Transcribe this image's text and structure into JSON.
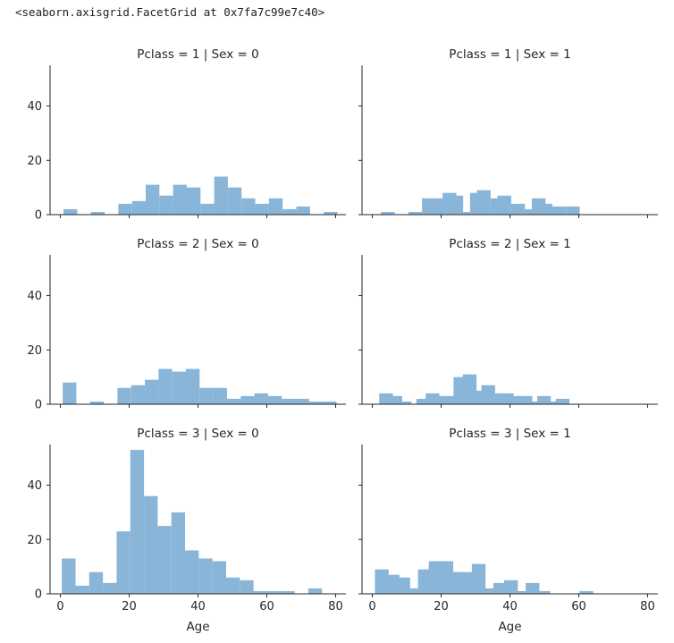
{
  "output": {
    "repr_text": "<seaborn.axisgrid.FacetGrid at 0x7fa7c99e7c40>"
  },
  "chart_data": {
    "type": "bar",
    "layout": "facet-grid 3 rows x 2 columns",
    "bar_color": "#89b5d9",
    "axis_color": "#262626",
    "xlabel": "Age",
    "ylabel": "",
    "xlim": [
      -3,
      83
    ],
    "ylim": [
      0,
      55
    ],
    "x_ticks": [
      0,
      20,
      40,
      60,
      80
    ],
    "y_ticks": [
      0,
      20,
      40
    ],
    "bin_width": 3.98,
    "panels": [
      {
        "title": "Pclass = 1 | Sex = 0",
        "bins": [
          {
            "x": 0.92,
            "count": 2
          },
          {
            "x": 4.9,
            "count": 0
          },
          {
            "x": 8.88,
            "count": 1
          },
          {
            "x": 12.86,
            "count": 0
          },
          {
            "x": 16.84,
            "count": 4
          },
          {
            "x": 20.82,
            "count": 5
          },
          {
            "x": 24.8,
            "count": 11
          },
          {
            "x": 28.78,
            "count": 7
          },
          {
            "x": 32.76,
            "count": 11
          },
          {
            "x": 36.74,
            "count": 10
          },
          {
            "x": 40.72,
            "count": 4
          },
          {
            "x": 44.7,
            "count": 14
          },
          {
            "x": 48.68,
            "count": 10
          },
          {
            "x": 52.66,
            "count": 6
          },
          {
            "x": 56.64,
            "count": 4
          },
          {
            "x": 60.62,
            "count": 6
          },
          {
            "x": 64.6,
            "count": 2
          },
          {
            "x": 68.58,
            "count": 3
          },
          {
            "x": 72.56,
            "count": 0
          },
          {
            "x": 76.54,
            "count": 1
          }
        ]
      },
      {
        "title": "Pclass = 1 | Sex = 1",
        "bins": [
          {
            "x": 0.92,
            "count": 0
          },
          {
            "x": 2.5,
            "count": 1
          },
          {
            "x": 6.48,
            "count": 0
          },
          {
            "x": 10.46,
            "count": 1
          },
          {
            "x": 14.44,
            "count": 6
          },
          {
            "x": 18.42,
            "count": 6
          },
          {
            "x": 20.42,
            "count": 8
          },
          {
            "x": 22.42,
            "count": 7
          },
          {
            "x": 26.4,
            "count": 1
          },
          {
            "x": 28.4,
            "count": 8
          },
          {
            "x": 30.4,
            "count": 9
          },
          {
            "x": 34.38,
            "count": 6
          },
          {
            "x": 36.38,
            "count": 7
          },
          {
            "x": 40.36,
            "count": 4
          },
          {
            "x": 42.36,
            "count": 2
          },
          {
            "x": 46.34,
            "count": 6
          },
          {
            "x": 48.34,
            "count": 4
          },
          {
            "x": 52.32,
            "count": 3
          },
          {
            "x": 56.3,
            "count": 3
          }
        ]
      },
      {
        "title": "Pclass = 2 | Sex = 0",
        "bins": [
          {
            "x": 0.67,
            "count": 8
          },
          {
            "x": 4.65,
            "count": 0
          },
          {
            "x": 8.63,
            "count": 1
          },
          {
            "x": 12.61,
            "count": 0
          },
          {
            "x": 16.59,
            "count": 6
          },
          {
            "x": 20.57,
            "count": 7
          },
          {
            "x": 24.55,
            "count": 9
          },
          {
            "x": 28.53,
            "count": 13
          },
          {
            "x": 32.51,
            "count": 12
          },
          {
            "x": 36.49,
            "count": 13
          },
          {
            "x": 40.47,
            "count": 6
          },
          {
            "x": 44.45,
            "count": 6
          },
          {
            "x": 48.43,
            "count": 2
          },
          {
            "x": 52.41,
            "count": 3
          },
          {
            "x": 56.39,
            "count": 4
          },
          {
            "x": 60.37,
            "count": 3
          },
          {
            "x": 64.35,
            "count": 2
          },
          {
            "x": 68.33,
            "count": 2
          },
          {
            "x": 72.31,
            "count": 1
          },
          {
            "x": 76.29,
            "count": 1
          }
        ]
      },
      {
        "title": "Pclass = 2 | Sex = 1",
        "bins": [
          {
            "x": 2.0,
            "count": 4
          },
          {
            "x": 4.7,
            "count": 3
          },
          {
            "x": 7.4,
            "count": 1
          },
          {
            "x": 10.1,
            "count": 0
          },
          {
            "x": 12.8,
            "count": 2
          },
          {
            "x": 15.5,
            "count": 4
          },
          {
            "x": 18.2,
            "count": 3
          },
          {
            "x": 20.9,
            "count": 3
          },
          {
            "x": 23.6,
            "count": 10
          },
          {
            "x": 26.3,
            "count": 11
          },
          {
            "x": 29.0,
            "count": 5
          },
          {
            "x": 31.7,
            "count": 7
          },
          {
            "x": 34.4,
            "count": 4
          },
          {
            "x": 37.1,
            "count": 4
          },
          {
            "x": 39.8,
            "count": 3
          },
          {
            "x": 42.5,
            "count": 3
          },
          {
            "x": 45.2,
            "count": 1
          },
          {
            "x": 47.9,
            "count": 3
          },
          {
            "x": 50.6,
            "count": 1
          },
          {
            "x": 53.3,
            "count": 2
          }
        ]
      },
      {
        "title": "Pclass = 3 | Sex = 0",
        "bins": [
          {
            "x": 0.42,
            "count": 13
          },
          {
            "x": 4.4,
            "count": 3
          },
          {
            "x": 8.38,
            "count": 8
          },
          {
            "x": 12.36,
            "count": 4
          },
          {
            "x": 16.34,
            "count": 23
          },
          {
            "x": 20.32,
            "count": 53
          },
          {
            "x": 24.3,
            "count": 36
          },
          {
            "x": 28.28,
            "count": 25
          },
          {
            "x": 32.26,
            "count": 30
          },
          {
            "x": 36.24,
            "count": 16
          },
          {
            "x": 40.22,
            "count": 13
          },
          {
            "x": 44.2,
            "count": 12
          },
          {
            "x": 48.18,
            "count": 6
          },
          {
            "x": 52.16,
            "count": 5
          },
          {
            "x": 56.14,
            "count": 1
          },
          {
            "x": 60.12,
            "count": 1
          },
          {
            "x": 64.1,
            "count": 1
          },
          {
            "x": 68.08,
            "count": 0
          },
          {
            "x": 72.06,
            "count": 2
          },
          {
            "x": 76.04,
            "count": 0
          }
        ]
      },
      {
        "title": "Pclass = 3 | Sex = 1",
        "bins": [
          {
            "x": 0.75,
            "count": 9
          },
          {
            "x": 3.88,
            "count": 7
          },
          {
            "x": 7.01,
            "count": 6
          },
          {
            "x": 10.14,
            "count": 2
          },
          {
            "x": 13.27,
            "count": 9
          },
          {
            "x": 16.4,
            "count": 12
          },
          {
            "x": 19.53,
            "count": 12
          },
          {
            "x": 22.66,
            "count": 8
          },
          {
            "x": 25.79,
            "count": 8
          },
          {
            "x": 28.92,
            "count": 11
          },
          {
            "x": 32.05,
            "count": 2
          },
          {
            "x": 35.18,
            "count": 4
          },
          {
            "x": 38.31,
            "count": 5
          },
          {
            "x": 41.44,
            "count": 1
          },
          {
            "x": 44.57,
            "count": 4
          },
          {
            "x": 47.7,
            "count": 1
          },
          {
            "x": 50.83,
            "count": 0
          },
          {
            "x": 53.96,
            "count": 0
          },
          {
            "x": 57.09,
            "count": 0
          },
          {
            "x": 60.22,
            "count": 1
          }
        ]
      }
    ]
  }
}
